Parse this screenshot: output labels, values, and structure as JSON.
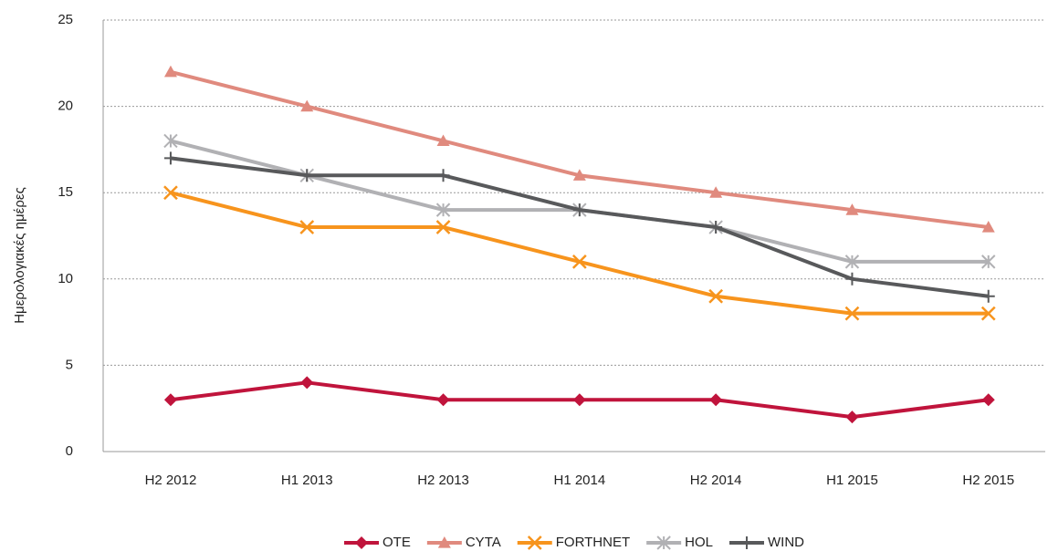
{
  "chart_data": {
    "type": "line",
    "y_axis_label": "Ημερολογιακές ημέρες",
    "categories": [
      "H2 2012",
      "H1 2013",
      "H2 2013",
      "H1 2014",
      "H2 2014",
      "H1 2015",
      "H2 2015"
    ],
    "series": [
      {
        "name": "OTE",
        "color": "#c0143c",
        "marker": "diamond",
        "values": [
          3,
          4,
          3,
          3,
          3,
          2,
          3
        ]
      },
      {
        "name": "CYTA",
        "color": "#e08a7e",
        "marker": "triangle",
        "values": [
          22,
          20,
          18,
          16,
          15,
          14,
          13
        ]
      },
      {
        "name": "FORTHNET",
        "color": "#f7941d",
        "marker": "x",
        "values": [
          15,
          13,
          13,
          11,
          9,
          8,
          8
        ]
      },
      {
        "name": "HOL",
        "color": "#b1b1b4",
        "marker": "asterisk",
        "values": [
          18,
          16,
          14,
          14,
          13,
          11,
          11
        ]
      },
      {
        "name": "WIND",
        "color": "#58595b",
        "marker": "plus",
        "values": [
          17,
          16,
          16,
          14,
          13,
          10,
          9
        ]
      }
    ],
    "ylim": [
      0,
      25
    ],
    "yticks": [
      0,
      5,
      10,
      15,
      20,
      25
    ],
    "grid": true,
    "legend": "bottom"
  }
}
